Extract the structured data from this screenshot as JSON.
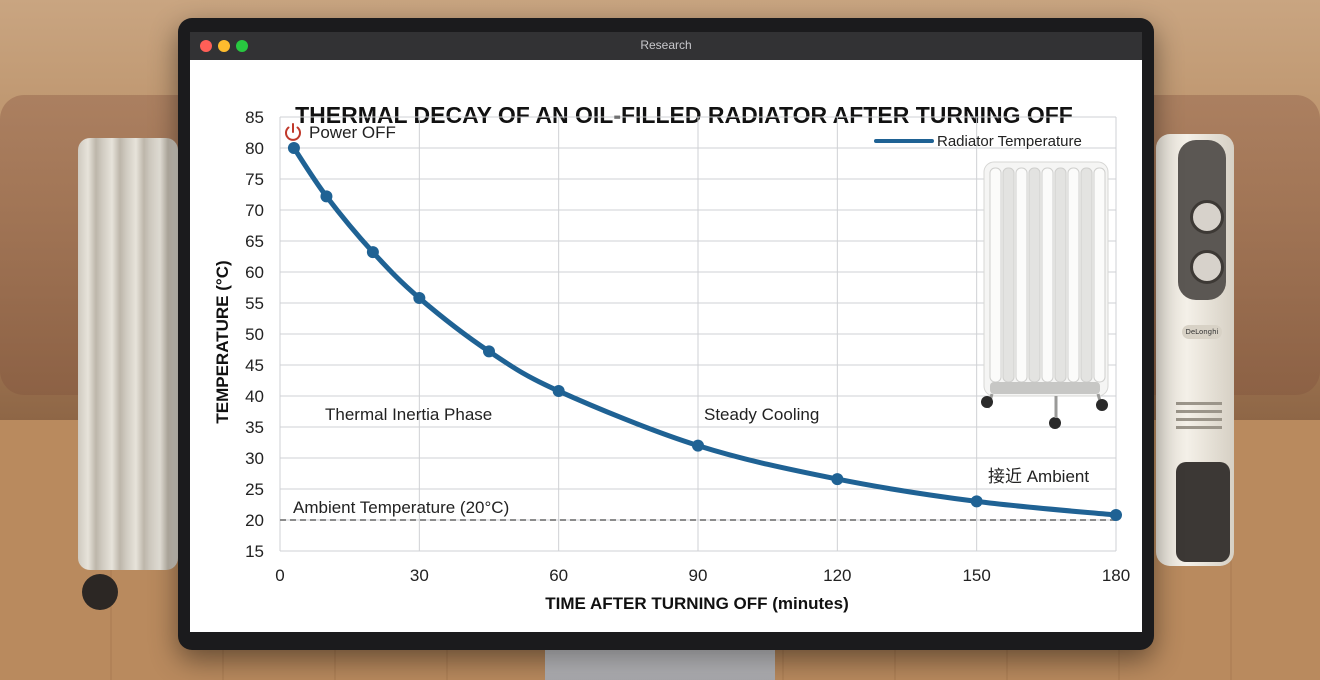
{
  "window": {
    "title": "Research"
  },
  "colors": {
    "series": "#1f6294",
    "ambient_line": "#8c8c8c",
    "power_icon": "#c0392b",
    "titlebar_close": "#ff5f57",
    "titlebar_minimize": "#febc2e",
    "titlebar_zoom": "#28c840"
  },
  "background": {
    "brand_badge": "DeLonghi"
  },
  "chart_data": {
    "type": "line",
    "title": "THERMAL DECAY OF AN OIL-FILLED RADIATOR AFTER TURNING OFF",
    "xlabel": "TIME AFTER TURNING OFF (minutes)",
    "ylabel": "TEMPERATURE (°C)",
    "xlim": [
      0,
      180
    ],
    "ylim": [
      15,
      85
    ],
    "xticks": [
      0,
      30,
      60,
      90,
      120,
      150,
      180
    ],
    "yticks": [
      15,
      20,
      25,
      30,
      35,
      40,
      45,
      50,
      55,
      60,
      65,
      70,
      75,
      80,
      85
    ],
    "grid": true,
    "legend": {
      "position": "top-right",
      "entries": [
        "Radiator Temperature"
      ]
    },
    "series": [
      {
        "name": "Radiator Temperature",
        "x": [
          3,
          10,
          20,
          30,
          45,
          60,
          90,
          120,
          150,
          180
        ],
        "y": [
          80,
          72.2,
          63.2,
          55.8,
          47.2,
          40.8,
          32,
          26.6,
          23,
          20.8
        ]
      }
    ],
    "reference_line": {
      "y": 20,
      "label": "Ambient Temperature (20°C)"
    },
    "annotations": {
      "power_off": "Power OFF",
      "inertia": "Thermal Inertia Phase",
      "steady": "Steady Cooling",
      "near_ambient": "接近 Ambient"
    }
  }
}
